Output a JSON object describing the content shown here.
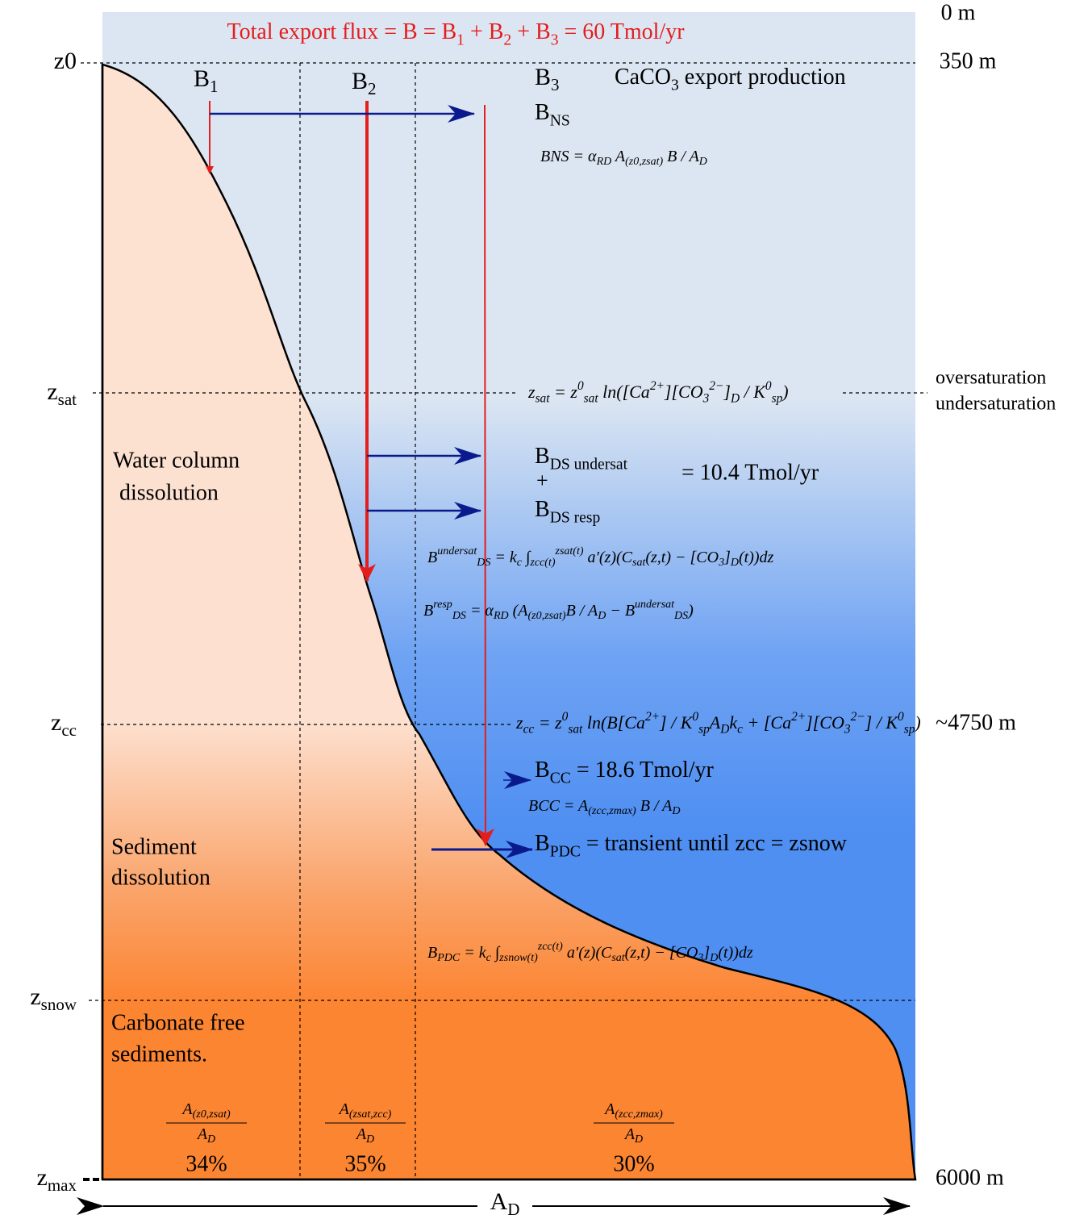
{
  "header": {
    "title": [
      "Total export flux = B = B",
      {
        "sub": "1"
      },
      " + B",
      {
        "sub": "2"
      },
      " + B",
      {
        "sub": "3"
      },
      " = 60 Tmol/yr"
    ]
  },
  "left_axis": [
    "z0",
    [
      "z",
      {
        "sub": "sat"
      }
    ],
    [
      "z",
      {
        "sub": "cc"
      }
    ],
    [
      "z",
      {
        "sub": "snow"
      }
    ],
    [
      "z",
      {
        "sub": "max"
      }
    ]
  ],
  "right_axis": [
    "0 m",
    "350 m",
    "oversaturation",
    "undersaturation",
    "~4750 m",
    "6000 m"
  ],
  "columns": [
    [
      "B",
      {
        "sub": "1"
      }
    ],
    [
      "B",
      {
        "sub": "2"
      }
    ],
    [
      "B",
      {
        "sub": "3"
      }
    ]
  ],
  "export_label": [
    "CaCO",
    {
      "sub": "3"
    },
    " export production"
  ],
  "bns_label": [
    "B",
    {
      "sub": "NS"
    }
  ],
  "zones": [
    [
      "Water column",
      "dissolution"
    ],
    [
      "Sediment",
      "dissolution"
    ],
    [
      "Carbonate free",
      "sediments."
    ]
  ],
  "fluxes": {
    "ds_undersat": [
      "B",
      {
        "sub": "DS undersat"
      }
    ],
    "plus": "+",
    "ds_resp": [
      "B",
      {
        "sub": "DS resp"
      }
    ],
    "ds_value": "= 10.4 Tmol/yr",
    "cc": [
      "B",
      {
        "sub": "CC"
      },
      " = 18.6 Tmol/yr"
    ],
    "pdc": [
      "B",
      {
        "sub": "PDC"
      },
      " = transient until zcc = zsnow"
    ]
  },
  "formulas": {
    "bns": [
      "BNS = α",
      {
        "sub": "RD"
      },
      " A",
      {
        "sub": "(z0,zsat)"
      },
      " B / A",
      {
        "sub": "D"
      }
    ],
    "zsat": [
      "z",
      {
        "sub": "sat"
      },
      " = z",
      {
        "sup": "0"
      },
      {
        "sub": "sat"
      },
      " ln([Ca",
      {
        "sup": "2+"
      },
      "][CO",
      {
        "sub": "3"
      },
      {
        "sup": "2−"
      },
      "]",
      {
        "sub": "D"
      },
      " / K",
      {
        "sup": "0"
      },
      {
        "sub": "sp"
      },
      ")"
    ],
    "bds_undersat": [
      "B",
      {
        "sup": "undersat"
      },
      {
        "sub": "DS"
      },
      " = k",
      {
        "sub": "c"
      },
      " ∫",
      {
        "sub": "zcc(t)"
      },
      {
        "sup": "zsat(t)"
      },
      " a′(z)(C",
      {
        "sub": "sat"
      },
      "(z,t) − [CO",
      {
        "sub": "3"
      },
      "]",
      {
        "sub": "D"
      },
      "(t))dz"
    ],
    "bds_resp": [
      "B",
      {
        "sup": "resp"
      },
      {
        "sub": "DS"
      },
      " = α",
      {
        "sub": "RD"
      },
      " (A",
      {
        "sub": "(z0,zsat)"
      },
      "B / A",
      {
        "sub": "D"
      },
      " − B",
      {
        "sup": "undersat"
      },
      {
        "sub": "DS"
      },
      ")"
    ],
    "zcc": [
      "z",
      {
        "sub": "cc"
      },
      " = z",
      {
        "sup": "0"
      },
      {
        "sub": "sat"
      },
      " ln(B[Ca",
      {
        "sup": "2+"
      },
      "] / K",
      {
        "sup": "0"
      },
      {
        "sub": "sp"
      },
      "A",
      {
        "sub": "D"
      },
      "k",
      {
        "sub": "c"
      },
      " + [Ca",
      {
        "sup": "2+"
      },
      "][CO",
      {
        "sub": "3"
      },
      {
        "sup": "2−"
      },
      "] / K",
      {
        "sup": "0"
      },
      {
        "sub": "sp"
      },
      ")"
    ],
    "bcc": [
      "BCC = A",
      {
        "sub": "(zcc,zmax)"
      },
      " B / A",
      {
        "sub": "D"
      }
    ],
    "bpdc": [
      "B",
      {
        "sub": "PDC"
      },
      " = k",
      {
        "sub": "c"
      },
      " ∫",
      {
        "sub": "zsnow(t)"
      },
      {
        "sup": "zcc(t)"
      },
      " a′(z)(C",
      {
        "sub": "sat"
      },
      "(z,t) − [CO",
      {
        "sub": "3"
      },
      "]",
      {
        "sub": "D"
      },
      "(t))dz"
    ]
  },
  "area_fractions": [
    {
      "numerator": [
        "A",
        {
          "sub": "(z0,zsat)"
        }
      ],
      "denominator": [
        "A",
        {
          "sub": "D"
        }
      ],
      "percent": "34%"
    },
    {
      "numerator": [
        "A",
        {
          "sub": "(zsat,zcc)"
        }
      ],
      "denominator": [
        "A",
        {
          "sub": "D"
        }
      ],
      "percent": "35%"
    },
    {
      "numerator": [
        "A",
        {
          "sub": "(zcc,zmax)"
        }
      ],
      "denominator": [
        "A",
        {
          "sub": "D"
        }
      ],
      "percent": "30%"
    }
  ],
  "bottom_axis": [
    "A",
    {
      "sub": "D"
    }
  ]
}
